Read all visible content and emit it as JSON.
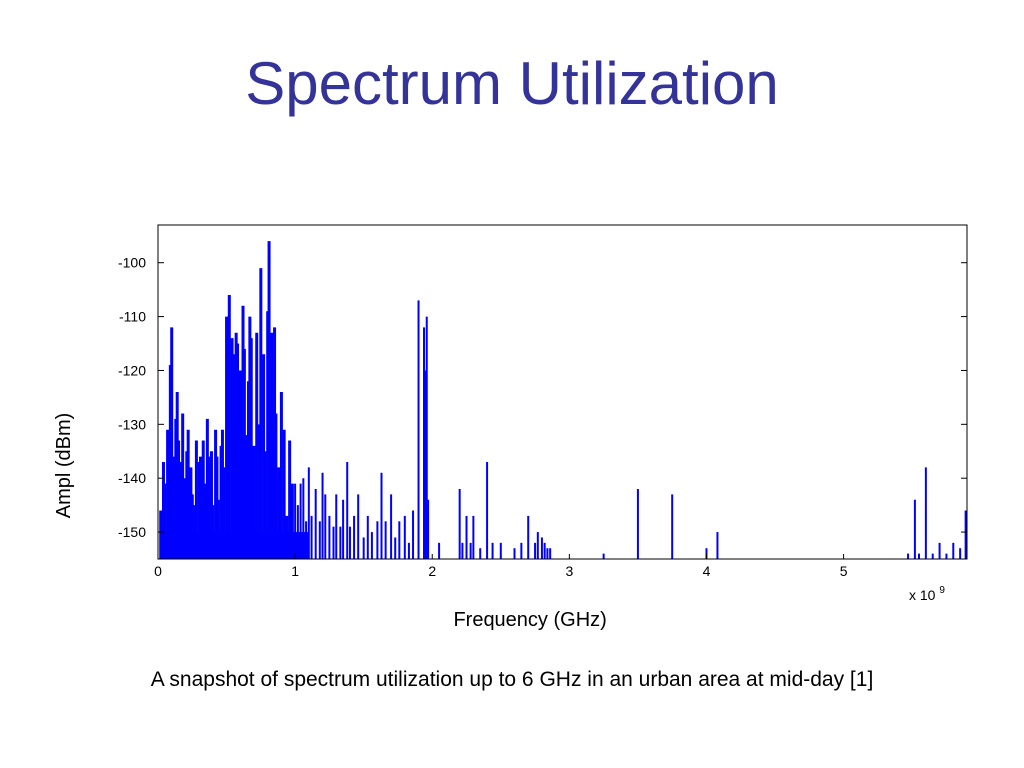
{
  "slide": {
    "title": "Spectrum Utilization",
    "caption": "A snapshot of spectrum utilization up to 6 GHz in an urban area at mid-day [1]"
  },
  "colors": {
    "title": "#333399",
    "series": "#0000ff",
    "axes": "#000000"
  },
  "chart_data": {
    "type": "bar",
    "title": "",
    "xlabel": "Frequency (GHz)",
    "ylabel": "Ampl (dBm)",
    "x_exponent_label": "x 10",
    "x_exponent_power": "9",
    "xlim": [
      0,
      5.9
    ],
    "ylim": [
      -155,
      -93
    ],
    "baseline": -155,
    "grid": false,
    "legend": "none",
    "x_ticks": [
      0,
      1,
      2,
      3,
      4,
      5
    ],
    "x_tick_labels": [
      "0",
      "1",
      "2",
      "3",
      "4",
      "5"
    ],
    "y_ticks": [
      -150,
      -140,
      -130,
      -120,
      -110,
      -100
    ],
    "y_tick_labels": [
      "-150",
      "-140",
      "-130",
      "-120",
      "-110",
      "-100"
    ],
    "series": [
      {
        "x": [
          0.02,
          0.04,
          0.05,
          0.07,
          0.09,
          0.1,
          0.12,
          0.13,
          0.14,
          0.15,
          0.17,
          0.18,
          0.2,
          0.21,
          0.22,
          0.24,
          0.25,
          0.27,
          0.28,
          0.3,
          0.31,
          0.33,
          0.34,
          0.36,
          0.37,
          0.39,
          0.4,
          0.42,
          0.43,
          0.44,
          0.46,
          0.47,
          0.48,
          0.5,
          0.51,
          0.52,
          0.54,
          0.55,
          0.56,
          0.57,
          0.58,
          0.6,
          0.61,
          0.62,
          0.63,
          0.64,
          0.66,
          0.67,
          0.68,
          0.7,
          0.72,
          0.73,
          0.75,
          0.77,
          0.78,
          0.8,
          0.81,
          0.83,
          0.84,
          0.85,
          0.86,
          0.88,
          0.9,
          0.92,
          0.94,
          0.96,
          0.98,
          1.0,
          1.02,
          1.04,
          1.06,
          1.08,
          1.1,
          1.12,
          1.15,
          1.18,
          1.2,
          1.22,
          1.25,
          1.28,
          1.3,
          1.33,
          1.35,
          1.38,
          1.4,
          1.43,
          1.46,
          1.5,
          1.53,
          1.56,
          1.6,
          1.63,
          1.66,
          1.7,
          1.73,
          1.76,
          1.8,
          1.83,
          1.86,
          1.9,
          1.94,
          1.95,
          1.96,
          1.97,
          2.0,
          2.05,
          2.2,
          2.22,
          2.25,
          2.28,
          2.3,
          2.35,
          2.4,
          2.44,
          2.5,
          2.6,
          2.65,
          2.7,
          2.75,
          2.77,
          2.8,
          2.82,
          2.84,
          2.86,
          3.25,
          3.5,
          3.75,
          4.0,
          4.08,
          5.3,
          5.35,
          5.42,
          5.47,
          5.52,
          5.55,
          5.6,
          5.65,
          5.7,
          5.75,
          5.8,
          5.85,
          5.89
        ],
        "y": [
          -146,
          -137,
          -141,
          -131,
          -119,
          -112,
          -136,
          -129,
          -124,
          -133,
          -137,
          -128,
          -140,
          -135,
          -131,
          -138,
          -143,
          -145,
          -133,
          -137,
          -136,
          -133,
          -141,
          -129,
          -136,
          -135,
          -145,
          -131,
          -136,
          -144,
          -134,
          -131,
          -138,
          -110,
          -120,
          -106,
          -114,
          -120,
          -117,
          -113,
          -115,
          -120,
          -121,
          -108,
          -116,
          -132,
          -122,
          -110,
          -114,
          -134,
          -113,
          -130,
          -101,
          -117,
          -135,
          -109,
          -96,
          -113,
          -131,
          -112,
          -128,
          -138,
          -124,
          -131,
          -147,
          -133,
          -141,
          -141,
          -145,
          -141,
          -140,
          -148,
          -138,
          -147,
          -142,
          -148,
          -139,
          -143,
          -147,
          -149,
          -143,
          -149,
          -144,
          -137,
          -149,
          -147,
          -143,
          -151,
          -147,
          -150,
          -148,
          -139,
          -148,
          -143,
          -151,
          -148,
          -147,
          -152,
          -146,
          -107,
          -112,
          -120,
          -110,
          -144,
          -155,
          -152,
          -142,
          -152,
          -147,
          -152,
          -147,
          -153,
          -137,
          -152,
          -152,
          -153,
          -152,
          -147,
          -152,
          -150,
          -151,
          -152,
          -153,
          -153,
          -154,
          -142,
          -143,
          -153,
          -150,
          -155,
          -155,
          -155,
          -154,
          -144,
          -154,
          -138,
          -154,
          -152,
          -154,
          -152,
          -153,
          -146
        ]
      }
    ]
  }
}
